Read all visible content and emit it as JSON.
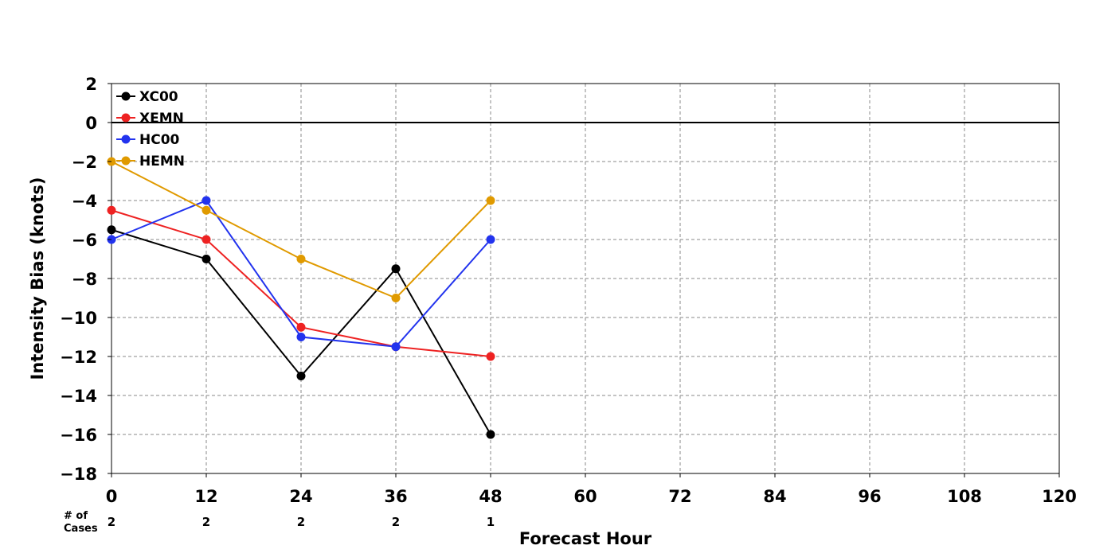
{
  "chart_data": {
    "type": "line",
    "title": "",
    "xlabel": "Forecast Hour",
    "ylabel": "Intensity Bias (knots)",
    "xlim": [
      0,
      120
    ],
    "ylim": [
      -18,
      2
    ],
    "x_ticks": [
      0,
      12,
      24,
      36,
      48,
      60,
      72,
      84,
      96,
      108,
      120
    ],
    "x_tick_labels": [
      "0",
      "12",
      "24",
      "36",
      "48",
      "60",
      "72",
      "84",
      "96",
      "108",
      "120"
    ],
    "y_ticks": [
      2,
      0,
      -2,
      -4,
      -6,
      -8,
      -10,
      -12,
      -14,
      -16,
      -18
    ],
    "y_tick_labels": [
      "2",
      "0",
      "−2",
      "−4",
      "−6",
      "−8",
      "−10",
      "−12",
      "−14",
      "−16",
      "−18"
    ],
    "grid": true,
    "zero_line": true,
    "legend_position": "top-left",
    "cases_label_line1": "# of",
    "cases_label_line2": "Cases",
    "cases": [
      {
        "x": 0,
        "label": "2"
      },
      {
        "x": 12,
        "label": "2"
      },
      {
        "x": 24,
        "label": "2"
      },
      {
        "x": 36,
        "label": "2"
      },
      {
        "x": 48,
        "label": "1"
      }
    ],
    "series": [
      {
        "name": "XC00",
        "color": "#000000",
        "x": [
          0,
          12,
          24,
          36,
          48
        ],
        "y": [
          -5.5,
          -7,
          -13,
          -7.5,
          -16
        ]
      },
      {
        "name": "XEMN",
        "color": "#ee2222",
        "x": [
          0,
          12,
          24,
          36,
          48
        ],
        "y": [
          -4.5,
          -6,
          -10.5,
          -11.5,
          -12
        ]
      },
      {
        "name": "HC00",
        "color": "#2233ee",
        "x": [
          0,
          12,
          24,
          36,
          48
        ],
        "y": [
          -6,
          -4,
          -11,
          -11.5,
          -6
        ]
      },
      {
        "name": "HEMN",
        "color": "#e09a00",
        "x": [
          0,
          12,
          24,
          36,
          48
        ],
        "y": [
          -2,
          -4.5,
          -7,
          -9,
          -4
        ]
      }
    ]
  }
}
